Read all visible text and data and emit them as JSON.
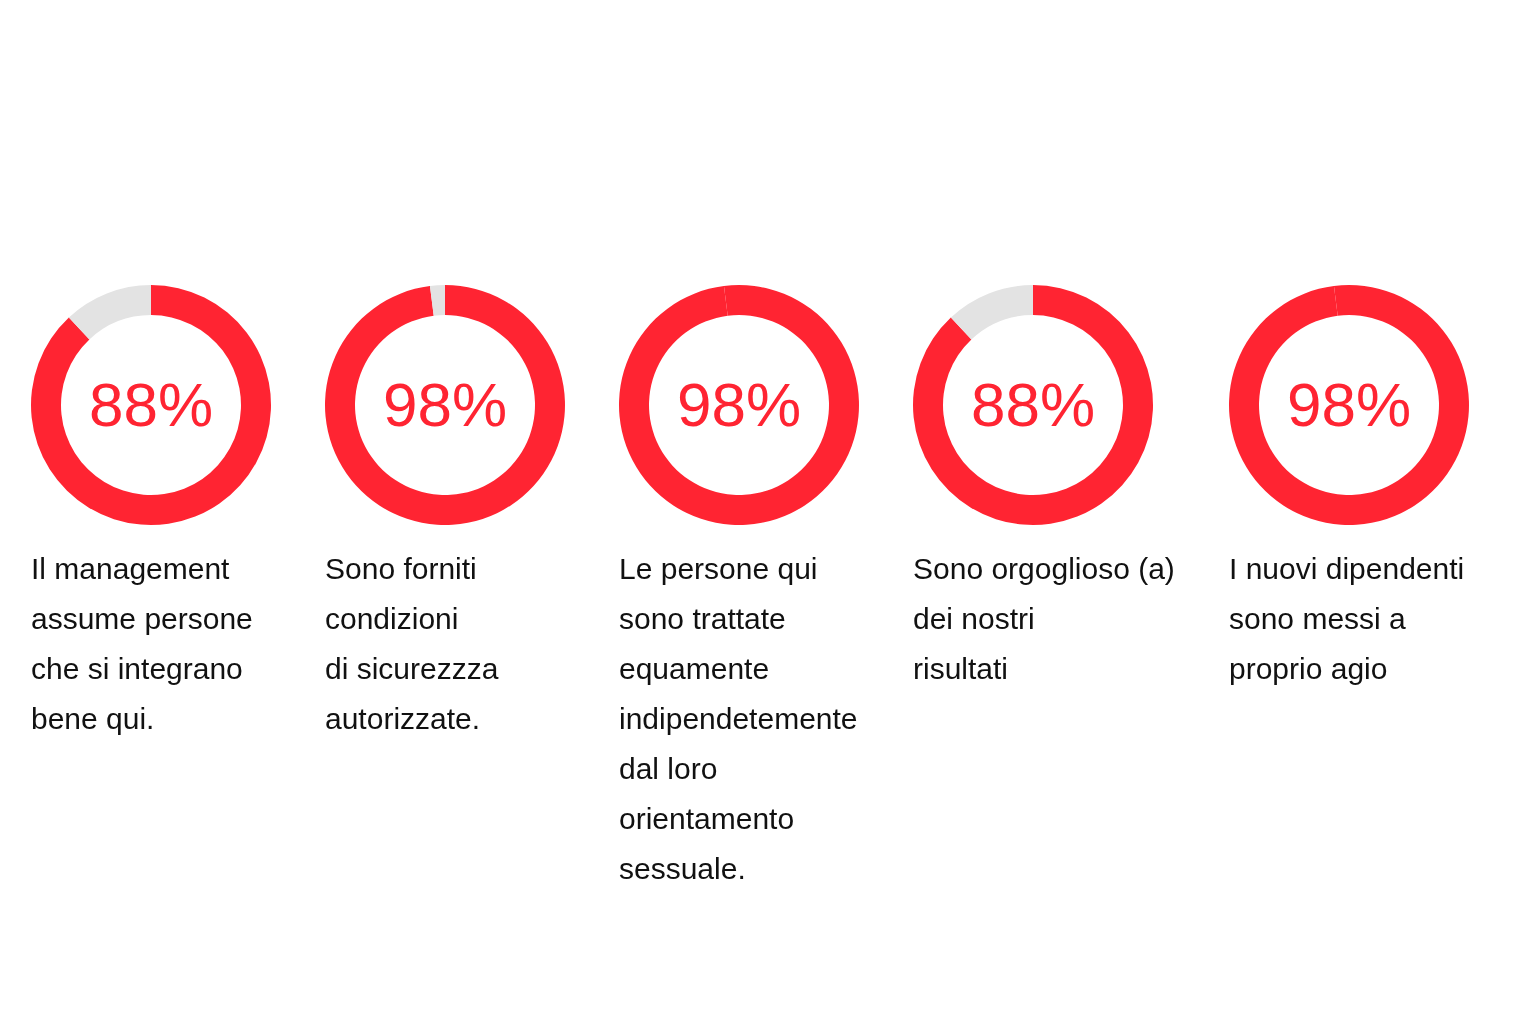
{
  "chart_data": [
    {
      "type": "donut",
      "title": "Il management\nassume persone\nche si integrano\nbene qui.",
      "categories": [
        null,
        null
      ],
      "values": [
        88,
        12
      ],
      "colors": [
        "#ff2432",
        "#e3e3e3"
      ],
      "value_labels": [
        "88%",
        null
      ]
    },
    {
      "type": "donut",
      "title": "Sono forniti\ncondizioni\ndi sicurezzza\nautorizzate.",
      "categories": [
        null,
        null
      ],
      "values": [
        98,
        2
      ],
      "colors": [
        "#ff2432",
        "#e3e3e3"
      ],
      "value_labels": [
        "98%",
        null
      ]
    },
    {
      "type": "donut",
      "title": "Le persone qui\nsono trattate\nequamente\nindipendetemente\ndal loro\norientamento\nsessuale.",
      "categories": [
        null,
        null
      ],
      "values": [
        98,
        2
      ],
      "colors": [
        "#ff2432",
        "#ff2432"
      ],
      "value_labels": [
        "98%",
        null
      ]
    },
    {
      "type": "donut",
      "title": "Sono orgoglioso (a)\ndei nostri\nrisultati",
      "categories": [
        null,
        null
      ],
      "values": [
        88,
        12
      ],
      "colors": [
        "#ff2432",
        "#e3e3e3"
      ],
      "value_labels": [
        "88%",
        null
      ]
    },
    {
      "type": "donut",
      "title": "I nuovi dipendenti\nsono messi a\nproprio agio",
      "categories": [
        null,
        null
      ],
      "values": [
        98,
        2
      ],
      "colors": [
        "#ff2432",
        "#ff2432"
      ],
      "value_labels": [
        "98%",
        null
      ]
    }
  ]
}
